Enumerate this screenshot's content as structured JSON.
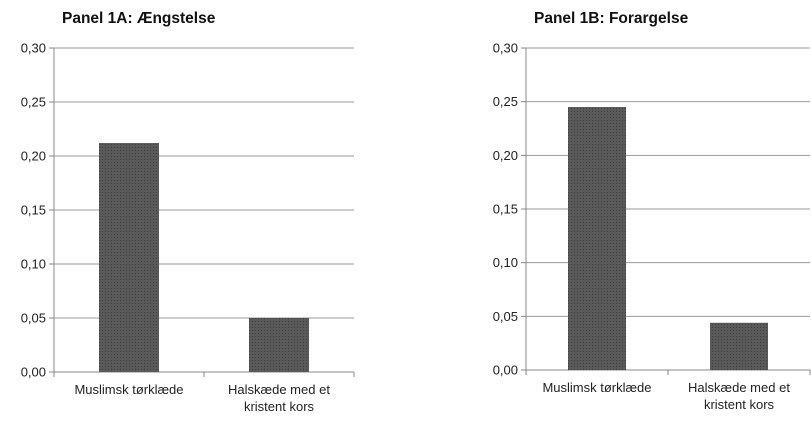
{
  "chart_data": [
    {
      "type": "bar",
      "title": "Panel 1A: Ængstelse",
      "categories": [
        [
          "Muslimsk tørklæde"
        ],
        [
          "Halskæde med et",
          "kristent kors"
        ]
      ],
      "values": [
        0.212,
        0.05
      ],
      "ylim": [
        0,
        0.3
      ],
      "yticks": [
        "0,00",
        "0,05",
        "0,10",
        "0,15",
        "0,20",
        "0,25",
        "0,30"
      ],
      "xlabel": "",
      "ylabel": "",
      "grid": true,
      "colors": {
        "bar": "#5a5a5a",
        "grid": "#9a9a9a",
        "axis": "#888888"
      }
    },
    {
      "type": "bar",
      "title": "Panel 1B: Forargelse",
      "categories": [
        [
          "Muslimsk tørklæde"
        ],
        [
          "Halskæde med et",
          "kristent kors"
        ]
      ],
      "values": [
        0.245,
        0.044
      ],
      "ylim": [
        0,
        0.3
      ],
      "yticks": [
        "0,00",
        "0,05",
        "0,10",
        "0,15",
        "0,20",
        "0,25",
        "0,30"
      ],
      "xlabel": "",
      "ylabel": "",
      "grid": true,
      "colors": {
        "bar": "#5a5a5a",
        "grid": "#9a9a9a",
        "axis": "#888888"
      }
    }
  ]
}
